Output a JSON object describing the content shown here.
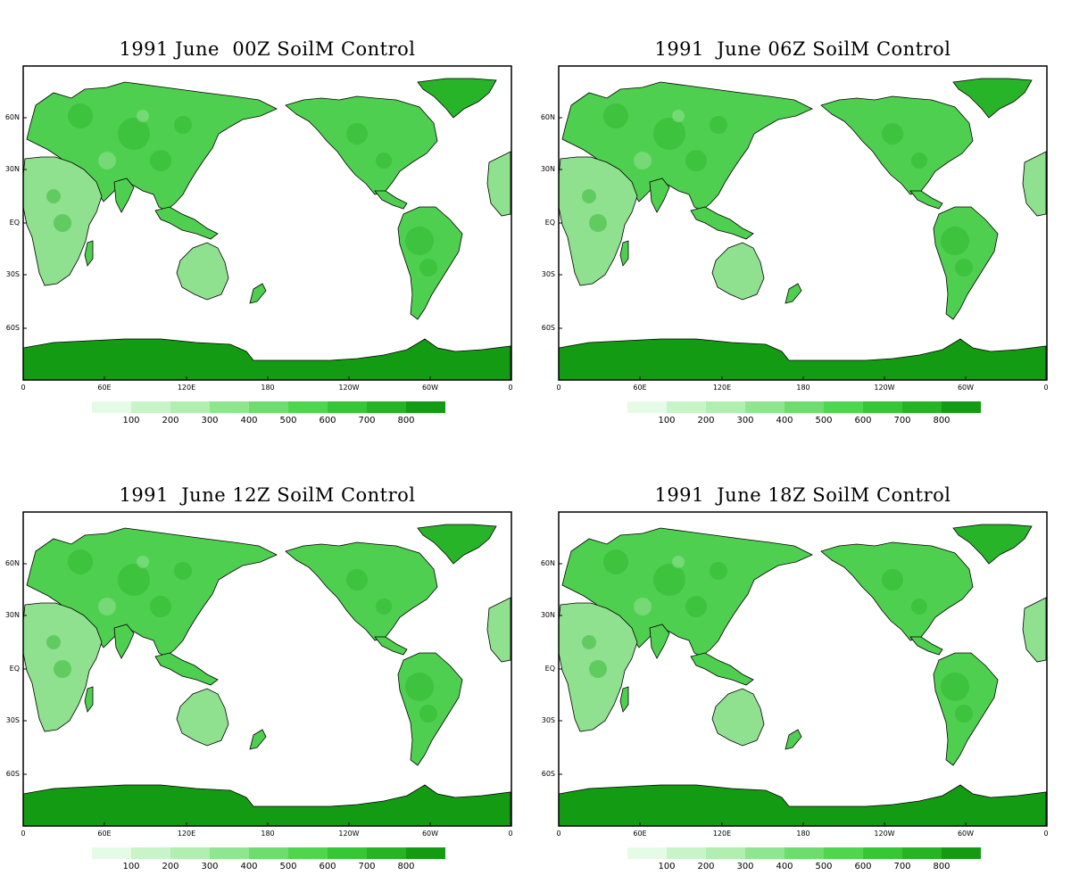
{
  "panels": [
    {
      "title": "1991 June  00Z SoilM Control"
    },
    {
      "title": "1991  June 06Z SoilM Control"
    },
    {
      "title": "1991  June 12Z SoilM Control"
    },
    {
      "title": "1991  June 18Z SoilM Control"
    }
  ],
  "lat_labels": [
    "60N",
    "30N",
    "EQ",
    "30S",
    "60S"
  ],
  "lon_labels": [
    "0",
    "60E",
    "120E",
    "180",
    "120W",
    "60W",
    "0"
  ],
  "colorbar": {
    "labels": [
      "100",
      "200",
      "300",
      "400",
      "500",
      "600",
      "700",
      "800"
    ],
    "colors": [
      "#e6fbe6",
      "#c8f5c8",
      "#b0efb0",
      "#90e690",
      "#6fdc6f",
      "#4fd64f",
      "#36c736",
      "#24b424",
      "#149b14"
    ]
  },
  "colors": {
    "land_light": "#8fe08f",
    "land_mid": "#4fcf4f",
    "land_dark": "#28b428",
    "antarctica": "#149b14",
    "ocean": "#ffffff"
  }
}
